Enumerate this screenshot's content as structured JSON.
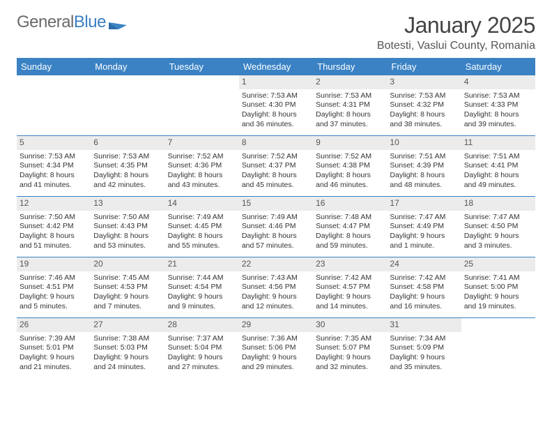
{
  "brand": {
    "part1": "General",
    "part2": "Blue"
  },
  "title": "January 2025",
  "location": "Botesti, Vaslui County, Romania",
  "colors": {
    "header_bg": "#3a82c4",
    "daynum_bg": "#ececec",
    "divider": "#3a82c4",
    "text": "#333333",
    "title_text": "#444444",
    "logo_gray": "#6a6a6a",
    "logo_blue": "#3a7fc4",
    "white": "#ffffff"
  },
  "typography": {
    "month_title_pt": 32,
    "location_pt": 16,
    "dayhead_pt": 13,
    "daynum_pt": 12,
    "cell_pt": 10.5
  },
  "day_headers": [
    "Sunday",
    "Monday",
    "Tuesday",
    "Wednesday",
    "Thursday",
    "Friday",
    "Saturday"
  ],
  "weeks": [
    [
      null,
      null,
      null,
      {
        "n": "1",
        "sr": "Sunrise: 7:53 AM",
        "ss": "Sunset: 4:30 PM",
        "d1": "Daylight: 8 hours",
        "d2": "and 36 minutes."
      },
      {
        "n": "2",
        "sr": "Sunrise: 7:53 AM",
        "ss": "Sunset: 4:31 PM",
        "d1": "Daylight: 8 hours",
        "d2": "and 37 minutes."
      },
      {
        "n": "3",
        "sr": "Sunrise: 7:53 AM",
        "ss": "Sunset: 4:32 PM",
        "d1": "Daylight: 8 hours",
        "d2": "and 38 minutes."
      },
      {
        "n": "4",
        "sr": "Sunrise: 7:53 AM",
        "ss": "Sunset: 4:33 PM",
        "d1": "Daylight: 8 hours",
        "d2": "and 39 minutes."
      }
    ],
    [
      {
        "n": "5",
        "sr": "Sunrise: 7:53 AM",
        "ss": "Sunset: 4:34 PM",
        "d1": "Daylight: 8 hours",
        "d2": "and 41 minutes."
      },
      {
        "n": "6",
        "sr": "Sunrise: 7:53 AM",
        "ss": "Sunset: 4:35 PM",
        "d1": "Daylight: 8 hours",
        "d2": "and 42 minutes."
      },
      {
        "n": "7",
        "sr": "Sunrise: 7:52 AM",
        "ss": "Sunset: 4:36 PM",
        "d1": "Daylight: 8 hours",
        "d2": "and 43 minutes."
      },
      {
        "n": "8",
        "sr": "Sunrise: 7:52 AM",
        "ss": "Sunset: 4:37 PM",
        "d1": "Daylight: 8 hours",
        "d2": "and 45 minutes."
      },
      {
        "n": "9",
        "sr": "Sunrise: 7:52 AM",
        "ss": "Sunset: 4:38 PM",
        "d1": "Daylight: 8 hours",
        "d2": "and 46 minutes."
      },
      {
        "n": "10",
        "sr": "Sunrise: 7:51 AM",
        "ss": "Sunset: 4:39 PM",
        "d1": "Daylight: 8 hours",
        "d2": "and 48 minutes."
      },
      {
        "n": "11",
        "sr": "Sunrise: 7:51 AM",
        "ss": "Sunset: 4:41 PM",
        "d1": "Daylight: 8 hours",
        "d2": "and 49 minutes."
      }
    ],
    [
      {
        "n": "12",
        "sr": "Sunrise: 7:50 AM",
        "ss": "Sunset: 4:42 PM",
        "d1": "Daylight: 8 hours",
        "d2": "and 51 minutes."
      },
      {
        "n": "13",
        "sr": "Sunrise: 7:50 AM",
        "ss": "Sunset: 4:43 PM",
        "d1": "Daylight: 8 hours",
        "d2": "and 53 minutes."
      },
      {
        "n": "14",
        "sr": "Sunrise: 7:49 AM",
        "ss": "Sunset: 4:45 PM",
        "d1": "Daylight: 8 hours",
        "d2": "and 55 minutes."
      },
      {
        "n": "15",
        "sr": "Sunrise: 7:49 AM",
        "ss": "Sunset: 4:46 PM",
        "d1": "Daylight: 8 hours",
        "d2": "and 57 minutes."
      },
      {
        "n": "16",
        "sr": "Sunrise: 7:48 AM",
        "ss": "Sunset: 4:47 PM",
        "d1": "Daylight: 8 hours",
        "d2": "and 59 minutes."
      },
      {
        "n": "17",
        "sr": "Sunrise: 7:47 AM",
        "ss": "Sunset: 4:49 PM",
        "d1": "Daylight: 9 hours",
        "d2": "and 1 minute."
      },
      {
        "n": "18",
        "sr": "Sunrise: 7:47 AM",
        "ss": "Sunset: 4:50 PM",
        "d1": "Daylight: 9 hours",
        "d2": "and 3 minutes."
      }
    ],
    [
      {
        "n": "19",
        "sr": "Sunrise: 7:46 AM",
        "ss": "Sunset: 4:51 PM",
        "d1": "Daylight: 9 hours",
        "d2": "and 5 minutes."
      },
      {
        "n": "20",
        "sr": "Sunrise: 7:45 AM",
        "ss": "Sunset: 4:53 PM",
        "d1": "Daylight: 9 hours",
        "d2": "and 7 minutes."
      },
      {
        "n": "21",
        "sr": "Sunrise: 7:44 AM",
        "ss": "Sunset: 4:54 PM",
        "d1": "Daylight: 9 hours",
        "d2": "and 9 minutes."
      },
      {
        "n": "22",
        "sr": "Sunrise: 7:43 AM",
        "ss": "Sunset: 4:56 PM",
        "d1": "Daylight: 9 hours",
        "d2": "and 12 minutes."
      },
      {
        "n": "23",
        "sr": "Sunrise: 7:42 AM",
        "ss": "Sunset: 4:57 PM",
        "d1": "Daylight: 9 hours",
        "d2": "and 14 minutes."
      },
      {
        "n": "24",
        "sr": "Sunrise: 7:42 AM",
        "ss": "Sunset: 4:58 PM",
        "d1": "Daylight: 9 hours",
        "d2": "and 16 minutes."
      },
      {
        "n": "25",
        "sr": "Sunrise: 7:41 AM",
        "ss": "Sunset: 5:00 PM",
        "d1": "Daylight: 9 hours",
        "d2": "and 19 minutes."
      }
    ],
    [
      {
        "n": "26",
        "sr": "Sunrise: 7:39 AM",
        "ss": "Sunset: 5:01 PM",
        "d1": "Daylight: 9 hours",
        "d2": "and 21 minutes."
      },
      {
        "n": "27",
        "sr": "Sunrise: 7:38 AM",
        "ss": "Sunset: 5:03 PM",
        "d1": "Daylight: 9 hours",
        "d2": "and 24 minutes."
      },
      {
        "n": "28",
        "sr": "Sunrise: 7:37 AM",
        "ss": "Sunset: 5:04 PM",
        "d1": "Daylight: 9 hours",
        "d2": "and 27 minutes."
      },
      {
        "n": "29",
        "sr": "Sunrise: 7:36 AM",
        "ss": "Sunset: 5:06 PM",
        "d1": "Daylight: 9 hours",
        "d2": "and 29 minutes."
      },
      {
        "n": "30",
        "sr": "Sunrise: 7:35 AM",
        "ss": "Sunset: 5:07 PM",
        "d1": "Daylight: 9 hours",
        "d2": "and 32 minutes."
      },
      {
        "n": "31",
        "sr": "Sunrise: 7:34 AM",
        "ss": "Sunset: 5:09 PM",
        "d1": "Daylight: 9 hours",
        "d2": "and 35 minutes."
      },
      null
    ]
  ]
}
